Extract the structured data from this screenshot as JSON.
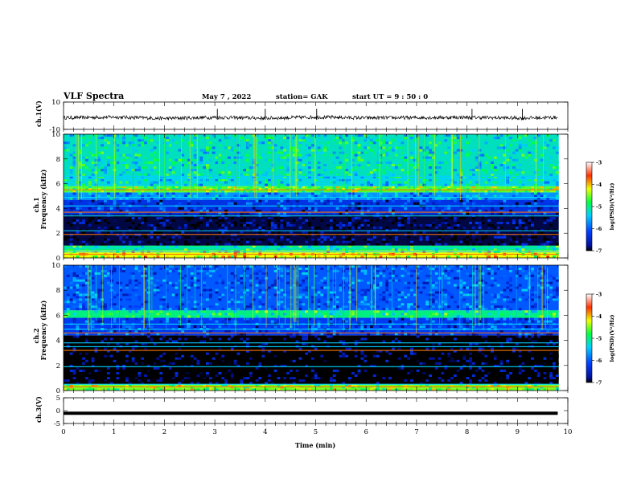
{
  "header": {
    "title": "VLF Spectra",
    "date": "May 7  , 2022",
    "station": "station= GAK",
    "start": "start  UT  =   9  : 50 : 0"
  },
  "chart_data": [
    {
      "type": "line",
      "panel": "ch1-waveform",
      "ylabel": "ch.1(V)",
      "ylim": [
        -10,
        10
      ],
      "yticks": [
        10,
        -10
      ],
      "xlim": [
        0,
        10
      ],
      "series": [
        {
          "x": [
            0,
            1,
            2,
            3,
            4,
            5,
            6,
            7,
            8,
            9,
            9.8
          ],
          "values": [
            -1.5,
            -1.0,
            -2.0,
            -1.2,
            -1.8,
            -1.0,
            -1.6,
            -1.4,
            -1.2,
            -1.7,
            -1.3
          ]
        }
      ]
    },
    {
      "type": "heatmap",
      "panel": "ch1-spectrogram",
      "ylabel_top": "ch.1",
      "ylabel": "Frequency  (kHz)",
      "ylim": [
        0,
        10
      ],
      "yticks": [
        0,
        2,
        4,
        6,
        8,
        10
      ],
      "xlim": [
        0,
        10
      ],
      "bands_khz": [
        {
          "from": 0.0,
          "to": 0.6,
          "level": -4.2
        },
        {
          "from": 0.6,
          "to": 1.0,
          "level": -5.0
        },
        {
          "from": 1.0,
          "to": 3.5,
          "level": -6.9
        },
        {
          "from": 3.5,
          "to": 4.7,
          "level": -6.3
        },
        {
          "from": 4.7,
          "to": 5.3,
          "level": -5.7
        },
        {
          "from": 5.3,
          "to": 5.8,
          "level": -4.6
        },
        {
          "from": 5.8,
          "to": 6.6,
          "level": -5.3
        },
        {
          "from": 6.6,
          "to": 10.0,
          "level": -5.2
        }
      ],
      "lines_khz": [
        0.3,
        0.5,
        0.8,
        1.9,
        2.2,
        3.4,
        3.7,
        4.2,
        4.9,
        5.5,
        6.4,
        6.6
      ]
    },
    {
      "type": "heatmap",
      "panel": "ch2-spectrogram",
      "ylabel_top": "ch.2",
      "ylabel": "Frequency  (kHz)",
      "ylim": [
        0,
        10
      ],
      "yticks": [
        0,
        2,
        4,
        6,
        8,
        10
      ],
      "xlim": [
        0,
        10
      ],
      "bands_khz": [
        {
          "from": 0.0,
          "to": 0.5,
          "level": -4.5
        },
        {
          "from": 0.5,
          "to": 4.4,
          "level": -7.0
        },
        {
          "from": 4.4,
          "to": 5.8,
          "level": -6.2
        },
        {
          "from": 5.8,
          "to": 6.4,
          "level": -5.0
        },
        {
          "from": 6.4,
          "to": 10.0,
          "level": -6.0
        }
      ],
      "lines_khz": [
        0.3,
        0.5,
        1.9,
        3.2,
        3.5,
        3.8,
        4.6,
        4.9,
        5.3
      ]
    },
    {
      "type": "line",
      "panel": "ch3-waveform",
      "ylabel": "ch.3(V)",
      "ylim": [
        -5,
        5
      ],
      "yticks": [
        5,
        0,
        -5
      ],
      "xlim": [
        0,
        10
      ],
      "xlabel": "Time  (min)",
      "xticks": [
        0,
        1,
        2,
        3,
        4,
        5,
        6,
        7,
        8,
        9,
        10
      ],
      "series": [
        {
          "x": [
            0,
            9.8
          ],
          "values": [
            -1.0,
            -1.0
          ]
        }
      ]
    }
  ],
  "colorbars": [
    {
      "label": "log(PSD)(V²/Hz)",
      "ticks": [
        -3,
        -4,
        -5,
        -6,
        -7
      ]
    },
    {
      "label": "log(PSD)(V²/Hz)",
      "ticks": [
        -3,
        -4,
        -5,
        -6,
        -7
      ]
    }
  ]
}
